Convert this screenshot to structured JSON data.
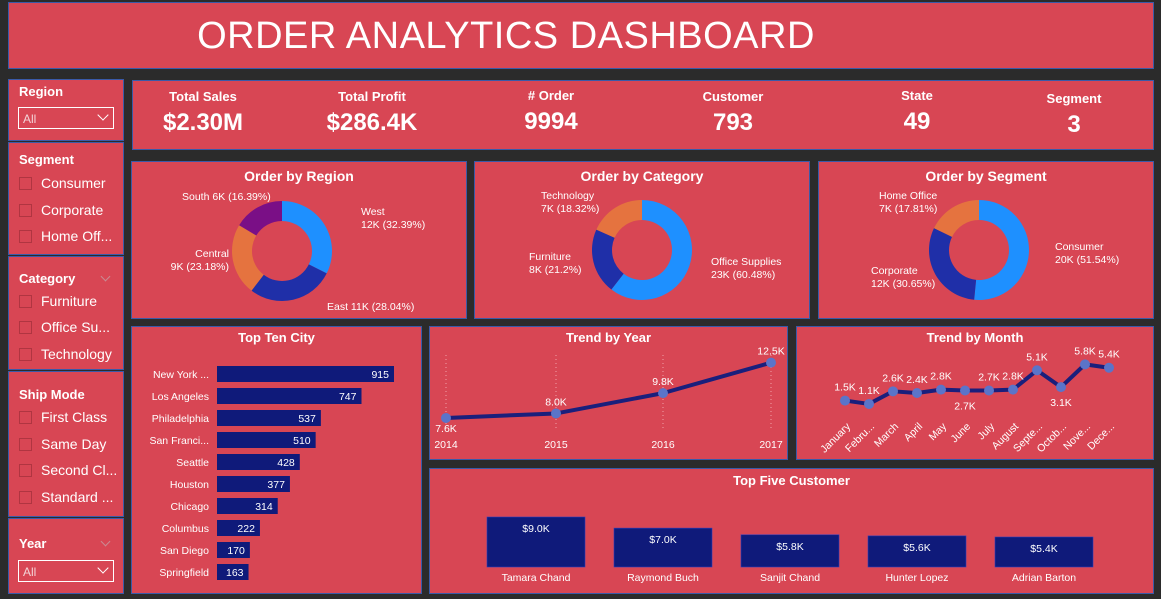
{
  "title": "ORDER ANALYTICS DASHBOARD",
  "slicers": {
    "region": {
      "title": "Region",
      "selected": "All"
    },
    "segment": {
      "title": "Segment",
      "items": [
        "Consumer",
        "Corporate",
        "Home Off..."
      ]
    },
    "category": {
      "title": "Category",
      "items": [
        "Furniture",
        "Office Su...",
        "Technology"
      ]
    },
    "ship_mode": {
      "title": "Ship Mode",
      "items": [
        "First Class",
        "Same Day",
        "Second Cl...",
        "Standard ..."
      ]
    },
    "year": {
      "title": "Year",
      "selected": "All"
    }
  },
  "kpis": [
    {
      "label": "Total Sales",
      "value": "$2.30M"
    },
    {
      "label": "Total Profit",
      "value": "$286.4K"
    },
    {
      "label": "# Order",
      "value": "9994"
    },
    {
      "label": "Customer",
      "value": "793"
    },
    {
      "label": "State",
      "value": "49"
    },
    {
      "label": "Segment",
      "value": "3"
    }
  ],
  "colors": {
    "panel": "#d84654",
    "dark_navy": "#0f1a7a",
    "blue": "#1e90ff",
    "navy": "#1f2fa8",
    "orange": "#e5733f",
    "purple": "#7a0f86",
    "line": "#1a1f7c",
    "marker": "#5b74c9"
  },
  "chart_data": [
    {
      "type": "pie",
      "title": "Order by Region",
      "categories": [
        "West",
        "East",
        "Central",
        "South"
      ],
      "values": [
        32.39,
        28.04,
        23.18,
        16.39
      ],
      "labels": [
        [
          "West",
          "12K (32.39%)"
        ],
        [
          "East 11K (28.04%)"
        ],
        [
          "Central",
          "9K (23.18%)"
        ],
        [
          "South 6K (16.39%)"
        ]
      ],
      "colors": [
        "#1e90ff",
        "#1f2fa8",
        "#e5733f",
        "#7a0f86"
      ]
    },
    {
      "type": "pie",
      "title": "Order by Category",
      "categories": [
        "Office Supplies",
        "Furniture",
        "Technology"
      ],
      "values": [
        60.48,
        21.2,
        18.32
      ],
      "labels": [
        [
          "Office Supplies",
          "23K (60.48%)"
        ],
        [
          "Furniture",
          "8K (21.2%)"
        ],
        [
          "Technology",
          "7K (18.32%)"
        ]
      ],
      "colors": [
        "#1e90ff",
        "#1f2fa8",
        "#e5733f"
      ]
    },
    {
      "type": "pie",
      "title": "Order by Segment",
      "categories": [
        "Consumer",
        "Corporate",
        "Home Office"
      ],
      "values": [
        51.54,
        30.65,
        17.81
      ],
      "labels": [
        [
          "Consumer",
          "20K (51.54%)"
        ],
        [
          "Corporate",
          "12K (30.65%)"
        ],
        [
          "Home Office",
          "7K (17.81%)"
        ]
      ],
      "colors": [
        "#1e90ff",
        "#1f2fa8",
        "#e5733f"
      ]
    },
    {
      "type": "bar",
      "title": "Top Ten City",
      "categories": [
        "New York ...",
        "Los Angeles",
        "Philadelphia",
        "San Franci...",
        "Seattle",
        "Houston",
        "Chicago",
        "Columbus",
        "San Diego",
        "Springfield"
      ],
      "values": [
        915,
        747,
        537,
        510,
        428,
        377,
        314,
        222,
        170,
        163
      ]
    },
    {
      "type": "line",
      "title": "Trend by Year",
      "x": [
        "2014",
        "2015",
        "2016",
        "2017"
      ],
      "values": [
        7.6,
        8.0,
        9.8,
        12.5
      ],
      "data_labels": [
        "7.6K",
        "8.0K",
        "9.8K",
        "12.5K"
      ]
    },
    {
      "type": "line",
      "title": "Trend by Month",
      "x": [
        "January",
        "Febru...",
        "March",
        "April",
        "May",
        "June",
        "July",
        "August",
        "Septe...",
        "Octob...",
        "Nove...",
        "Dece..."
      ],
      "values": [
        1.5,
        1.1,
        2.6,
        2.4,
        2.8,
        2.7,
        2.7,
        2.8,
        5.1,
        3.1,
        5.8,
        5.4
      ],
      "data_labels": [
        "1.5K",
        "1.1K",
        "2.6K",
        "2.4K",
        "2.8K",
        "2.7K",
        "2.7K",
        "2.8K",
        "5.1K",
        "3.1K",
        "5.8K",
        "5.4K"
      ]
    },
    {
      "type": "bar",
      "title": "Top Five Customer",
      "categories": [
        "Tamara Chand",
        "Raymond Buch",
        "Sanjit Chand",
        "Hunter Lopez",
        "Adrian Barton"
      ],
      "values": [
        9.0,
        7.0,
        5.8,
        5.6,
        5.4
      ],
      "data_labels": [
        "$9.0K",
        "$7.0K",
        "$5.8K",
        "$5.6K",
        "$5.4K"
      ]
    }
  ]
}
